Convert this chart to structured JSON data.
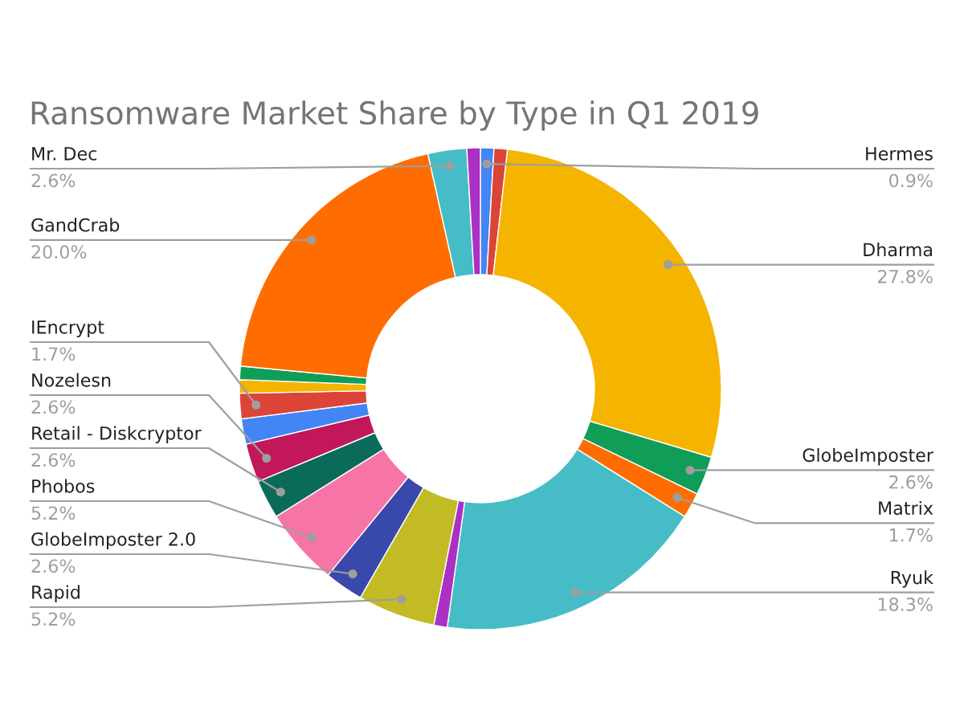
{
  "chart_data": {
    "type": "donut",
    "title": "Ransomware Market Share by Type in Q1 2019",
    "categories": [
      "Hermes",
      null,
      "Dharma",
      "GlobeImposter",
      "Matrix",
      "Ryuk",
      null,
      "Rapid",
      "GlobeImposter 2.0",
      "Phobos",
      "Retail - Diskcryptor",
      "Nozelesn",
      null,
      "IEncrypt",
      null,
      null,
      "GandCrab",
      "Mr. Dec",
      null
    ],
    "values": [
      0.9,
      0.9,
      27.8,
      2.6,
      1.7,
      18.3,
      0.9,
      5.2,
      2.6,
      5.2,
      2.6,
      2.6,
      1.7,
      1.7,
      0.9,
      0.9,
      20.0,
      2.6,
      0.9
    ],
    "value_labels": [
      "0.9%",
      null,
      "27.8%",
      "2.6%",
      "1.7%",
      "18.3%",
      null,
      "5.2%",
      "2.6%",
      "5.2%",
      "2.6%",
      "2.6%",
      null,
      "1.7%",
      null,
      null,
      "20.0%",
      "2.6%",
      null
    ],
    "colors": [
      "#4285f4",
      "#db4437",
      "#f4b400",
      "#0f9d58",
      "#ff6d00",
      "#46bdc6",
      "#ab30c4",
      "#c2bb23",
      "#3949ab",
      "#f774a7",
      "#0b6b5a",
      "#c2185b",
      "#4285f4",
      "#db4437",
      "#f4b400",
      "#0f9d58",
      "#ff6d00",
      "#46bdc6",
      "#ab30c4"
    ]
  }
}
